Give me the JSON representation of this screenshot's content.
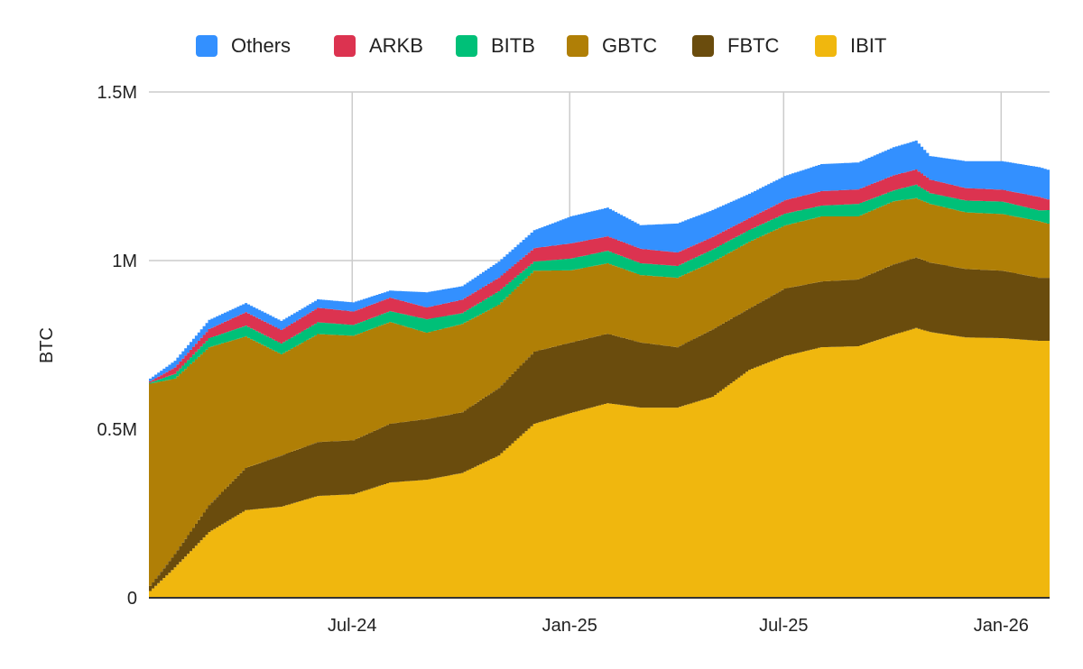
{
  "chart_data": {
    "type": "area",
    "stacked": true,
    "ylabel": "BTC",
    "xlabel": "",
    "ylim": [
      0,
      1500000
    ],
    "xlim": [
      "2024-01-11",
      "2026-02-11"
    ],
    "grid": true,
    "legend_position": "top",
    "y_ticks": [
      {
        "value": 0,
        "label": "0"
      },
      {
        "value": 500000,
        "label": "0.5M"
      },
      {
        "value": 1000000,
        "label": "1M"
      },
      {
        "value": 1500000,
        "label": "1.5M"
      }
    ],
    "x_ticks": [
      {
        "date": "2024-07-01",
        "label": "Jul-24"
      },
      {
        "date": "2025-01-01",
        "label": "Jan-25"
      },
      {
        "date": "2025-07-01",
        "label": "Jul-25"
      },
      {
        "date": "2026-01-01",
        "label": "Jan-26"
      }
    ],
    "x": [
      "2024-01-11",
      "2024-02-01",
      "2024-03-01",
      "2024-04-01",
      "2024-05-01",
      "2024-06-01",
      "2024-07-01",
      "2024-08-01",
      "2024-09-01",
      "2024-10-01",
      "2024-11-01",
      "2024-12-01",
      "2025-01-01",
      "2025-02-01",
      "2025-03-01",
      "2025-04-01",
      "2025-05-01",
      "2025-06-01",
      "2025-07-01",
      "2025-08-01",
      "2025-09-01",
      "2025-10-01",
      "2025-10-20",
      "2025-11-01",
      "2025-12-01",
      "2026-01-01",
      "2026-02-01",
      "2026-02-11"
    ],
    "series": [
      {
        "name": "IBIT",
        "color": "#f0b70e",
        "values": [
          20000,
          90000,
          195000,
          260000,
          270000,
          302000,
          307000,
          342000,
          350000,
          370000,
          422000,
          516000,
          548000,
          577000,
          564000,
          564000,
          596000,
          676000,
          717000,
          743000,
          746000,
          780000,
          800000,
          788000,
          772000,
          770000,
          762000,
          762000
        ]
      },
      {
        "name": "FBTC",
        "color": "#6a4c0d",
        "values": [
          15000,
          40000,
          80000,
          125000,
          152000,
          160000,
          160000,
          174000,
          180000,
          180000,
          200000,
          214000,
          209000,
          206000,
          193000,
          179000,
          200000,
          182000,
          200000,
          195000,
          198000,
          209000,
          209000,
          206000,
          203000,
          200000,
          187000,
          187000
        ]
      },
      {
        "name": "GBTC",
        "color": "#b07f06",
        "values": [
          600000,
          520000,
          468000,
          390000,
          300000,
          320000,
          310000,
          302000,
          256000,
          262000,
          247000,
          240000,
          214000,
          209000,
          200000,
          206000,
          200000,
          198000,
          187000,
          193000,
          187000,
          187000,
          176000,
          174000,
          168000,
          168000,
          168000,
          158000
        ]
      },
      {
        "name": "BITB",
        "color": "#00c078",
        "values": [
          3000,
          14000,
          27000,
          32000,
          32000,
          35000,
          32000,
          32000,
          40000,
          32000,
          40000,
          27000,
          35000,
          37000,
          35000,
          35000,
          37000,
          35000,
          35000,
          32000,
          37000,
          32000,
          40000,
          32000,
          35000,
          37000,
          32000,
          43000
        ]
      },
      {
        "name": "ARKB",
        "color": "#dc3350",
        "values": [
          4000,
          19000,
          27000,
          40000,
          40000,
          43000,
          40000,
          40000,
          35000,
          40000,
          40000,
          40000,
          45000,
          43000,
          43000,
          40000,
          37000,
          35000,
          40000,
          43000,
          43000,
          45000,
          45000,
          40000,
          37000,
          35000,
          40000,
          29000
        ]
      },
      {
        "name": "Others",
        "color": "#3390ff",
        "values": [
          8000,
          20000,
          27000,
          27000,
          27000,
          25000,
          27000,
          21000,
          45000,
          40000,
          48000,
          53000,
          80000,
          85000,
          70000,
          86000,
          80000,
          72000,
          72000,
          80000,
          80000,
          83000,
          86000,
          70000,
          80000,
          85000,
          88000,
          88000
        ]
      }
    ],
    "legend_order": [
      "Others",
      "ARKB",
      "BITB",
      "GBTC",
      "FBTC",
      "IBIT"
    ]
  }
}
